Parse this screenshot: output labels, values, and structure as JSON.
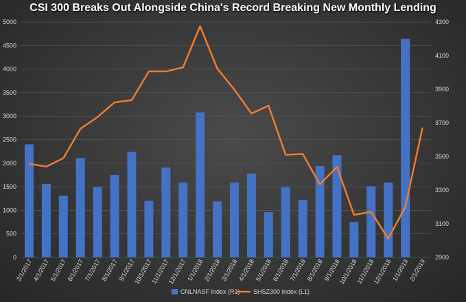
{
  "chart_data": {
    "type": "bar",
    "title": "CSI 300 Breaks Out Alongside China's Record Breaking New Monthly Lending",
    "categories": [
      "3/1/2017",
      "4/1/2017",
      "5/1/2017",
      "6/1/2017",
      "7/1/2017",
      "8/1/2017",
      "9/1/2017",
      "10/1/2017",
      "11/1/2017",
      "12/1/2017",
      "1/1/2018",
      "2/1/2018",
      "3/1/2018",
      "4/1/2018",
      "5/1/2018",
      "6/1/2018",
      "7/1/2018",
      "8/1/2018",
      "9/1/2018",
      "10/1/2018",
      "11/1/2018",
      "12/1/2018",
      "1/1/2019",
      "2/1/2019"
    ],
    "series": [
      {
        "name": "CNLNASF Index  (R1)",
        "type": "bar",
        "axis": "left",
        "color": "#4472c4",
        "values": [
          2400,
          1560,
          1310,
          2110,
          1490,
          1750,
          2240,
          1200,
          1910,
          1590,
          3080,
          1190,
          1590,
          1780,
          960,
          1490,
          1220,
          1940,
          2170,
          750,
          1510,
          1590,
          4640,
          null
        ]
      },
      {
        "name": "SHSZ300 Index  (L1)",
        "type": "line",
        "axis": "right",
        "color": "#ed7d31",
        "values": [
          3456,
          3440,
          3490,
          3665,
          3735,
          3822,
          3835,
          4006,
          4006,
          4030,
          4275,
          4023,
          3898,
          3756,
          3802,
          3510,
          3515,
          3334,
          3438,
          3153,
          3171,
          3011,
          3201,
          3670
        ]
      }
    ],
    "y_left": {
      "ticks": [
        "0",
        "500",
        "1000",
        "1500",
        "2000",
        "2500",
        "3000",
        "3500",
        "4000",
        "4500",
        "5000"
      ],
      "ylim": [
        0,
        5000
      ]
    },
    "y_right": {
      "ticks": [
        "2900",
        "3100",
        "3300",
        "3500",
        "3700",
        "3900",
        "4100",
        "4300"
      ],
      "ylim": [
        2900,
        4300
      ]
    },
    "grid": true,
    "legend_position": "bottom-center"
  }
}
